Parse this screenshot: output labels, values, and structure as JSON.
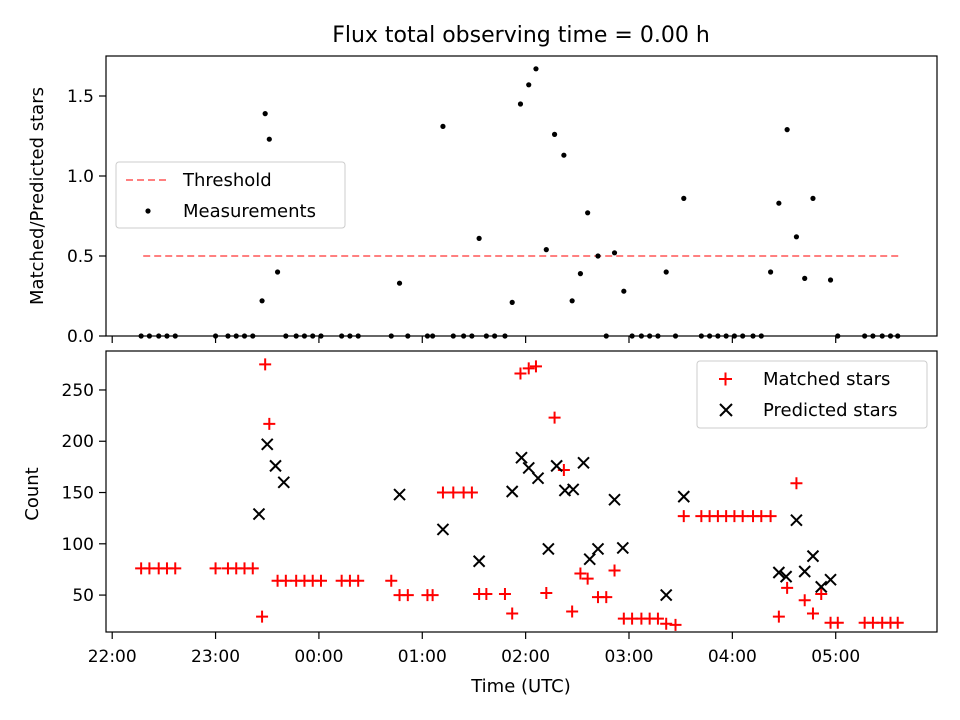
{
  "chart_data": [
    {
      "type": "scatter",
      "title": "Flux total observing time = 0.00 h",
      "xlabel": "",
      "ylabel": "Matched/Predicted stars",
      "ylim": [
        0,
        1.75
      ],
      "yticks": [
        0.0,
        0.5,
        1.0,
        1.5
      ],
      "ytick_labels": [
        "0.0",
        "0.5",
        "1.0",
        "1.5"
      ],
      "legend_position": "center-left",
      "legend": [
        "Threshold",
        "Measurements"
      ],
      "threshold": {
        "name": "Threshold",
        "y": 0.5,
        "x_start": 22.3,
        "x_end": 29.63,
        "color": "#ff8080",
        "style": "dashed"
      },
      "series": [
        {
          "name": "Measurements",
          "marker": "dot",
          "color": "#000000",
          "x": [
            22.28,
            22.36,
            22.45,
            22.53,
            22.61,
            23.0,
            23.12,
            23.2,
            23.28,
            23.36,
            23.45,
            23.48,
            23.52,
            23.6,
            23.68,
            23.78,
            23.86,
            23.94,
            24.02,
            24.22,
            24.3,
            24.38,
            24.7,
            24.78,
            24.86,
            25.05,
            25.1,
            25.2,
            25.3,
            25.4,
            25.48,
            25.55,
            25.62,
            25.7,
            25.8,
            25.87,
            25.95,
            26.03,
            26.1,
            26.2,
            26.28,
            26.37,
            26.45,
            26.53,
            26.6,
            26.7,
            26.78,
            26.86,
            26.95,
            27.03,
            27.12,
            27.2,
            27.28,
            27.36,
            27.45,
            27.53,
            27.7,
            27.78,
            27.86,
            27.94,
            28.02,
            28.1,
            28.2,
            28.28,
            28.37,
            28.45,
            28.53,
            28.62,
            28.7,
            28.78,
            28.95,
            29.02,
            29.28,
            29.36,
            29.45,
            29.53,
            29.6
          ],
          "y": [
            0,
            0,
            0,
            0,
            0,
            0,
            0,
            0,
            0,
            0,
            0.22,
            1.39,
            1.23,
            0.4,
            0,
            0,
            0,
            0,
            0,
            0,
            0,
            0,
            0,
            0.33,
            0,
            0,
            0,
            1.31,
            0,
            0,
            0,
            0.61,
            0,
            0,
            0,
            0.21,
            1.45,
            1.57,
            1.67,
            0.54,
            1.26,
            1.13,
            0.22,
            0.39,
            0.77,
            0.5,
            0,
            0.52,
            0.28,
            0,
            0,
            0,
            0,
            0.4,
            0,
            0.86,
            0,
            0,
            0,
            0,
            0,
            0,
            0,
            0,
            0.4,
            0.83,
            1.29,
            0.62,
            0.36,
            0.86,
            0.35,
            0,
            0,
            0,
            0,
            0,
            0
          ]
        }
      ]
    },
    {
      "type": "scatter",
      "title": "",
      "xlabel": "Time (UTC)",
      "ylabel": "Count",
      "ylim": [
        14,
        288
      ],
      "yticks": [
        50,
        100,
        150,
        200,
        250
      ],
      "ytick_labels": [
        "50",
        "100",
        "150",
        "200",
        "250"
      ],
      "xlim": [
        21.94,
        29.98
      ],
      "xticks": [
        22,
        23,
        24,
        25,
        26,
        27,
        28,
        29
      ],
      "xtick_labels": [
        "22:00",
        "23:00",
        "00:00",
        "01:00",
        "02:00",
        "03:00",
        "04:00",
        "05:00"
      ],
      "legend_position": "top-right",
      "legend": [
        "Matched stars",
        "Predicted stars"
      ],
      "series": [
        {
          "name": "Matched stars",
          "marker": "plus",
          "color": "#ff0000",
          "x": [
            22.28,
            22.36,
            22.45,
            22.53,
            22.61,
            23.0,
            23.12,
            23.2,
            23.28,
            23.36,
            23.45,
            23.48,
            23.6,
            23.52,
            23.68,
            23.78,
            23.86,
            23.94,
            24.02,
            24.22,
            24.3,
            24.38,
            24.7,
            24.78,
            24.86,
            25.05,
            25.1,
            25.2,
            25.3,
            25.4,
            25.48,
            25.55,
            25.62,
            25.8,
            25.87,
            25.95,
            26.03,
            26.1,
            26.2,
            26.28,
            26.37,
            26.45,
            26.53,
            26.6,
            26.7,
            26.78,
            26.86,
            26.95,
            27.03,
            27.12,
            27.2,
            27.28,
            27.36,
            27.45,
            27.53,
            27.7,
            27.78,
            27.86,
            27.94,
            28.02,
            28.1,
            28.2,
            28.28,
            28.37,
            28.45,
            28.53,
            28.62,
            28.7,
            28.78,
            28.86,
            28.95,
            29.02,
            29.28,
            29.36,
            29.45,
            29.53,
            29.6
          ],
          "y": [
            76,
            76,
            76,
            76,
            76,
            76,
            76,
            76,
            76,
            76,
            29,
            275,
            64,
            217,
            64,
            64,
            64,
            64,
            64,
            64,
            64,
            64,
            64,
            50,
            50,
            50,
            50,
            150,
            150,
            150,
            150,
            51,
            51,
            51,
            32,
            266,
            271,
            273,
            52,
            223,
            172,
            34,
            71,
            66,
            48,
            48,
            74,
            27,
            27,
            27,
            27,
            27,
            22,
            21,
            127,
            127,
            127,
            127,
            127,
            127,
            127,
            127,
            127,
            127,
            29,
            57,
            159,
            45,
            32,
            51,
            23,
            23,
            23,
            23,
            23,
            23,
            23
          ]
        },
        {
          "name": "Predicted stars",
          "marker": "x",
          "color": "#000000",
          "x": [
            23.42,
            23.5,
            23.58,
            23.66,
            24.78,
            25.2,
            25.55,
            25.87,
            25.96,
            26.03,
            26.12,
            26.22,
            26.3,
            26.38,
            26.46,
            26.56,
            26.62,
            26.7,
            26.86,
            26.94,
            27.36,
            27.53,
            28.45,
            28.52,
            28.62,
            28.7,
            28.78,
            28.86,
            28.95
          ],
          "y": [
            129,
            197,
            176,
            160,
            148,
            114,
            83,
            151,
            184,
            174,
            164,
            95,
            176,
            152,
            153,
            179,
            85,
            95,
            143,
            96,
            50,
            146,
            72,
            68,
            123,
            73,
            88,
            58,
            65
          ]
        }
      ]
    }
  ]
}
